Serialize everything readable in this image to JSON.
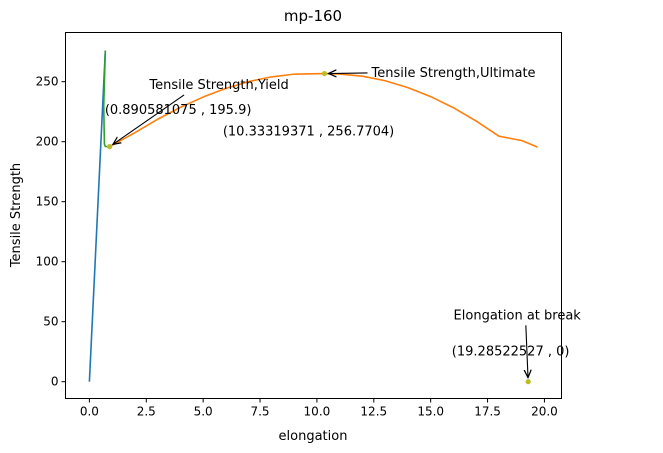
{
  "chart_data": {
    "type": "line",
    "title": "mp-160",
    "xlabel": "elongation",
    "ylabel": "Tensile Strength",
    "xlim": [
      -1.05,
      20.75
    ],
    "ylim": [
      -14,
      291
    ],
    "xticks": [
      0.0,
      2.5,
      5.0,
      7.5,
      10.0,
      12.5,
      15.0,
      17.5,
      20.0
    ],
    "xtick_labels": [
      "0.0",
      "2.5",
      "5.0",
      "7.5",
      "10.0",
      "12.5",
      "15.0",
      "17.5",
      "20.0"
    ],
    "yticks": [
      0,
      50,
      100,
      150,
      200,
      250
    ],
    "ytick_labels": [
      "0",
      "50",
      "100",
      "150",
      "200",
      "250"
    ],
    "grid": false,
    "series": [
      {
        "color": "#1f77b4",
        "x": [
          0.0,
          0.7
        ],
        "y": [
          0,
          276
        ]
      },
      {
        "color": "#2ca02c",
        "x": [
          0.7,
          0.63,
          0.66,
          0.7,
          0.89
        ],
        "y": [
          276,
          230,
          198,
          196,
          195.9
        ]
      },
      {
        "color": "#ff7f0e",
        "x": [
          0.89,
          2,
          3,
          4,
          5,
          6,
          7,
          8,
          9,
          10.33,
          11,
          12,
          13,
          14,
          15,
          16,
          17,
          18,
          19,
          19.7
        ],
        "y": [
          195.9,
          207.5,
          218.7,
          228.6,
          237.2,
          244.4,
          250.1,
          254.0,
          256.3,
          256.77,
          256.4,
          254.6,
          250.8,
          245.1,
          237.6,
          228.3,
          217.2,
          204.6,
          201.0,
          195.5
        ]
      }
    ],
    "points": [
      {
        "x": 0.890581075,
        "y": 195.9,
        "color": "#bcbd22"
      },
      {
        "x": 10.33319371,
        "y": 256.7704,
        "color": "#bcbd22"
      },
      {
        "x": 19.28522527,
        "y": 0,
        "color": "#bcbd22"
      }
    ],
    "annotations": [
      {
        "text": "Tensile Strength,Yield",
        "x": 0.890581075,
        "y": 195.9,
        "text_x": 5.7,
        "text_y": 244,
        "anchor": "middle",
        "arrow": true
      },
      {
        "text": "(0.890581075 , 195.9)",
        "text_x": 3.9,
        "text_y": 223,
        "anchor": "middle",
        "arrow": false
      },
      {
        "text": "Tensile Strength,Ultimate",
        "x": 10.33319371,
        "y": 256.7704,
        "text_x": 12.4,
        "text_y": 254,
        "anchor": "start",
        "arrow": true
      },
      {
        "text": "(10.33319371 , 256.7704)",
        "text_x": 13.4,
        "text_y": 205,
        "anchor": "end",
        "arrow": false
      },
      {
        "text": "Elongation at break",
        "x": 19.28522527,
        "y": 0,
        "text_x": 21.6,
        "text_y": 52,
        "anchor": "end",
        "arrow": true
      },
      {
        "text": "(19.28522527 , 0)",
        "text_x": 21.1,
        "text_y": 22,
        "anchor": "end",
        "arrow": false
      }
    ]
  }
}
